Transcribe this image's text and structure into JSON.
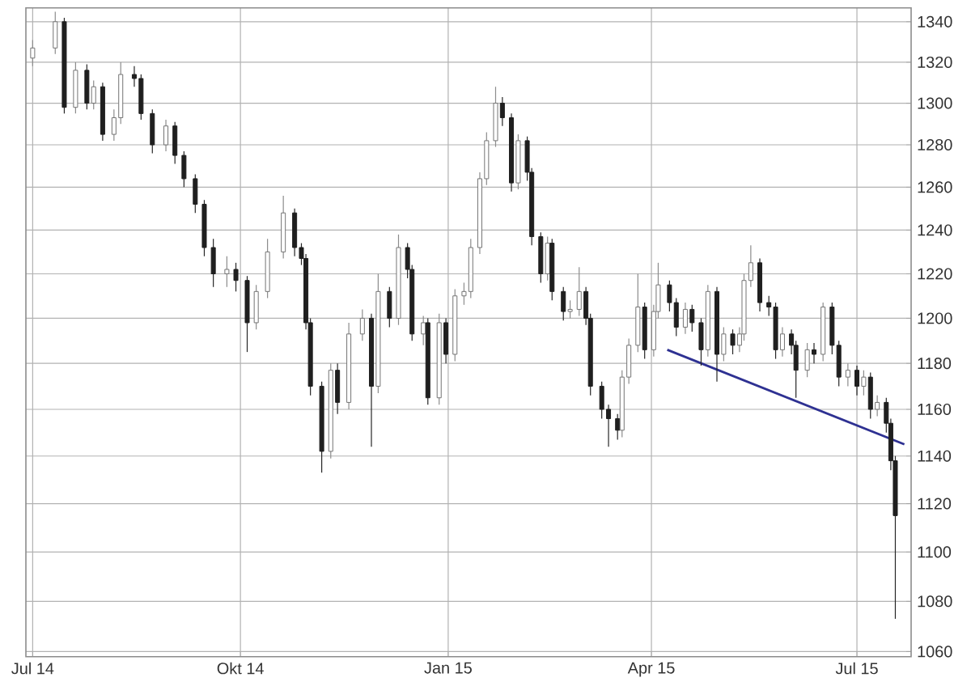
{
  "chart_data": {
    "type": "candlestick",
    "log": true,
    "grid": true,
    "xlim": [
      "2014-06-28",
      "2015-07-25"
    ],
    "xticks": [
      {
        "value": "2014-07-01",
        "label": "Jul 14"
      },
      {
        "value": "2014-10-01",
        "label": "Okt 14"
      },
      {
        "value": "2015-01-01",
        "label": "Jan 15"
      },
      {
        "value": "2015-04-01",
        "label": "Apr 15"
      },
      {
        "value": "2015-07-01",
        "label": "Jul 15"
      }
    ],
    "ylim": [
      1058,
      1347
    ],
    "yticks": [
      1060,
      1080,
      1100,
      1120,
      1140,
      1160,
      1180,
      1200,
      1220,
      1240,
      1260,
      1280,
      1300,
      1320,
      1340
    ],
    "x": [
      "2014-07-01",
      "2014-07-11",
      "2014-07-15",
      "2014-07-20",
      "2014-07-25",
      "2014-07-28",
      "2014-08-01",
      "2014-08-06",
      "2014-08-09",
      "2014-08-15",
      "2014-08-18",
      "2014-08-23",
      "2014-08-29",
      "2014-09-02",
      "2014-09-06",
      "2014-09-11",
      "2014-09-15",
      "2014-09-19",
      "2014-09-25",
      "2014-09-29",
      "2014-10-04",
      "2014-10-08",
      "2014-10-13",
      "2014-10-20",
      "2014-10-25",
      "2014-10-28",
      "2014-10-30",
      "2014-11-01",
      "2014-11-06",
      "2014-11-10",
      "2014-11-13",
      "2014-11-18",
      "2014-11-24",
      "2014-11-28",
      "2014-12-01",
      "2014-12-06",
      "2014-12-10",
      "2014-12-14",
      "2014-12-16",
      "2014-12-21",
      "2014-12-23",
      "2014-12-28",
      "2014-12-31",
      "2015-01-04",
      "2015-01-08",
      "2015-01-11",
      "2015-01-15",
      "2015-01-18",
      "2015-01-22",
      "2015-01-25",
      "2015-01-29",
      "2015-02-01",
      "2015-02-05",
      "2015-02-07",
      "2015-02-11",
      "2015-02-14",
      "2015-02-16",
      "2015-02-21",
      "2015-02-24",
      "2015-02-28",
      "2015-03-03",
      "2015-03-05",
      "2015-03-10",
      "2015-03-13",
      "2015-03-17",
      "2015-03-19",
      "2015-03-22",
      "2015-03-26",
      "2015-03-29",
      "2015-04-02",
      "2015-04-04",
      "2015-04-09",
      "2015-04-12",
      "2015-04-16",
      "2015-04-19",
      "2015-04-23",
      "2015-04-26",
      "2015-04-30",
      "2015-05-03",
      "2015-05-07",
      "2015-05-10",
      "2015-05-12",
      "2015-05-15",
      "2015-05-19",
      "2015-05-23",
      "2015-05-26",
      "2015-05-29",
      "2015-06-02",
      "2015-06-04",
      "2015-06-09",
      "2015-06-12",
      "2015-06-16",
      "2015-06-20",
      "2015-06-23",
      "2015-06-27",
      "2015-07-01",
      "2015-07-04",
      "2015-07-07",
      "2015-07-10",
      "2015-07-14",
      "2015-07-16",
      "2015-07-18"
    ],
    "ohlc": [
      [
        1322,
        1331,
        1318,
        1327
      ],
      [
        1327,
        1345,
        1324,
        1340
      ],
      [
        1340,
        1342,
        1295,
        1298
      ],
      [
        1298,
        1320,
        1295,
        1316
      ],
      [
        1316,
        1319,
        1297,
        1300
      ],
      [
        1300,
        1311,
        1297,
        1308
      ],
      [
        1308,
        1310,
        1282,
        1285
      ],
      [
        1285,
        1297,
        1282,
        1293
      ],
      [
        1293,
        1320,
        1290,
        1314
      ],
      [
        1314,
        1318,
        1308,
        1312
      ],
      [
        1312,
        1314,
        1292,
        1295
      ],
      [
        1295,
        1297,
        1276,
        1280
      ],
      [
        1280,
        1292,
        1277,
        1289
      ],
      [
        1289,
        1291,
        1271,
        1275
      ],
      [
        1275,
        1277,
        1260,
        1264
      ],
      [
        1264,
        1266,
        1248,
        1252
      ],
      [
        1252,
        1254,
        1228,
        1232
      ],
      [
        1232,
        1236,
        1214,
        1220
      ],
      [
        1220,
        1228,
        1214,
        1222
      ],
      [
        1222,
        1225,
        1212,
        1217
      ],
      [
        1217,
        1219,
        1185,
        1198
      ],
      [
        1198,
        1215,
        1195,
        1212
      ],
      [
        1212,
        1236,
        1209,
        1230
      ],
      [
        1230,
        1256,
        1227,
        1248
      ],
      [
        1248,
        1250,
        1228,
        1232
      ],
      [
        1232,
        1234,
        1224,
        1227
      ],
      [
        1227,
        1229,
        1195,
        1198
      ],
      [
        1198,
        1200,
        1166,
        1170
      ],
      [
        1170,
        1172,
        1133,
        1142
      ],
      [
        1142,
        1180,
        1139,
        1177
      ],
      [
        1177,
        1180,
        1158,
        1163
      ],
      [
        1163,
        1198,
        1160,
        1193
      ],
      [
        1193,
        1204,
        1190,
        1200
      ],
      [
        1200,
        1202,
        1144,
        1170
      ],
      [
        1170,
        1220,
        1167,
        1212
      ],
      [
        1212,
        1214,
        1196,
        1200
      ],
      [
        1200,
        1238,
        1197,
        1232
      ],
      [
        1232,
        1234,
        1218,
        1222
      ],
      [
        1222,
        1224,
        1190,
        1193
      ],
      [
        1193,
        1201,
        1188,
        1198
      ],
      [
        1198,
        1200,
        1162,
        1165
      ],
      [
        1165,
        1202,
        1162,
        1198
      ],
      [
        1198,
        1200,
        1180,
        1184
      ],
      [
        1184,
        1213,
        1181,
        1210
      ],
      [
        1210,
        1216,
        1206,
        1212
      ],
      [
        1212,
        1236,
        1209,
        1232
      ],
      [
        1232,
        1267,
        1229,
        1264
      ],
      [
        1264,
        1286,
        1261,
        1282
      ],
      [
        1282,
        1308,
        1279,
        1300
      ],
      [
        1300,
        1303,
        1289,
        1293
      ],
      [
        1293,
        1295,
        1258,
        1262
      ],
      [
        1262,
        1285,
        1259,
        1282
      ],
      [
        1282,
        1284,
        1263,
        1267
      ],
      [
        1267,
        1269,
        1233,
        1237
      ],
      [
        1237,
        1239,
        1216,
        1220
      ],
      [
        1220,
        1237,
        1217,
        1234
      ],
      [
        1234,
        1236,
        1208,
        1212
      ],
      [
        1212,
        1214,
        1199,
        1203
      ],
      [
        1203,
        1208,
        1200,
        1204
      ],
      [
        1204,
        1223,
        1201,
        1212
      ],
      [
        1212,
        1214,
        1197,
        1200
      ],
      [
        1200,
        1202,
        1166,
        1170
      ],
      [
        1170,
        1172,
        1156,
        1160
      ],
      [
        1160,
        1162,
        1144,
        1156
      ],
      [
        1156,
        1158,
        1147,
        1151
      ],
      [
        1151,
        1177,
        1148,
        1174
      ],
      [
        1174,
        1191,
        1171,
        1188
      ],
      [
        1188,
        1220,
        1185,
        1205
      ],
      [
        1205,
        1207,
        1182,
        1186
      ],
      [
        1186,
        1206,
        1183,
        1203
      ],
      [
        1203,
        1225,
        1200,
        1215
      ],
      [
        1215,
        1217,
        1203,
        1207
      ],
      [
        1207,
        1209,
        1192,
        1196
      ],
      [
        1196,
        1207,
        1193,
        1204
      ],
      [
        1204,
        1206,
        1194,
        1198
      ],
      [
        1198,
        1200,
        1179,
        1186
      ],
      [
        1186,
        1215,
        1183,
        1212
      ],
      [
        1212,
        1214,
        1172,
        1184
      ],
      [
        1184,
        1196,
        1181,
        1193
      ],
      [
        1193,
        1195,
        1184,
        1188
      ],
      [
        1188,
        1196,
        1185,
        1193
      ],
      [
        1193,
        1220,
        1190,
        1217
      ],
      [
        1217,
        1233,
        1214,
        1225
      ],
      [
        1225,
        1227,
        1203,
        1207
      ],
      [
        1207,
        1210,
        1201,
        1205
      ],
      [
        1205,
        1207,
        1182,
        1186
      ],
      [
        1186,
        1196,
        1183,
        1193
      ],
      [
        1193,
        1195,
        1184,
        1188
      ],
      [
        1188,
        1190,
        1165,
        1177
      ],
      [
        1177,
        1189,
        1174,
        1186
      ],
      [
        1186,
        1189,
        1180,
        1184
      ],
      [
        1184,
        1207,
        1181,
        1205
      ],
      [
        1205,
        1207,
        1184,
        1188
      ],
      [
        1188,
        1190,
        1170,
        1174
      ],
      [
        1174,
        1180,
        1170,
        1177
      ],
      [
        1177,
        1179,
        1166,
        1170
      ],
      [
        1170,
        1177,
        1166,
        1174
      ],
      [
        1174,
        1176,
        1156,
        1160
      ],
      [
        1160,
        1166,
        1157,
        1163
      ],
      [
        1163,
        1165,
        1150,
        1154
      ],
      [
        1154,
        1156,
        1134,
        1138
      ],
      [
        1138,
        1140,
        1073,
        1115
      ]
    ],
    "series": [
      {
        "type": "line",
        "color": "#2e3192",
        "x": [
          "2015-04-08",
          "2015-07-22"
        ],
        "values": [
          1186,
          1145
        ]
      }
    ]
  }
}
